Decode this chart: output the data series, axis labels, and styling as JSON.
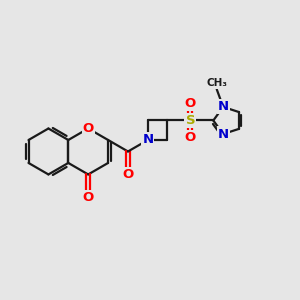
{
  "bg_color": "#e6e6e6",
  "bond_color": "#1a1a1a",
  "bond_width": 1.6,
  "atom_colors": {
    "O": "#ff0000",
    "N": "#0000cc",
    "S": "#aaaa00",
    "C": "#1a1a1a"
  },
  "font_size": 9.5
}
